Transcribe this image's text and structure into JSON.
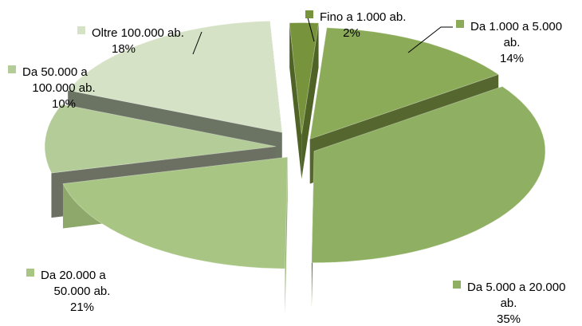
{
  "chart_data": {
    "type": "pie",
    "style": "3d-exploded",
    "categories": [
      "Fino a 1.000 ab.",
      "Da 1.000 a 5.000 ab.",
      "Da 5.000 a 20.000 ab.",
      "Da 20.000 a 50.000 ab.",
      "Da 50.000 a 100.000 ab.",
      "Oltre 100.000 ab."
    ],
    "values": [
      2,
      14,
      35,
      21,
      10,
      18
    ],
    "value_labels": [
      "2%",
      "14%",
      "35%",
      "21%",
      "10%",
      "18%"
    ],
    "label_lines": [
      [
        "Fino a 1.000 ab."
      ],
      [
        "Da 1.000 a 5.000",
        "ab."
      ],
      [
        "Da 5.000 a 20.000",
        "ab."
      ],
      [
        "Da 20.000 a",
        "50.000 ab."
      ],
      [
        "Da 50.000 a",
        "100.000 ab."
      ],
      [
        "Oltre 100.000 ab."
      ]
    ],
    "colors": [
      "#77933c",
      "#8bab58",
      "#8fb063",
      "#a8c584",
      "#b4cc98",
      "#d5e2c6"
    ],
    "side_colors": [
      "#4f6327",
      "#55672f",
      "#5c7535",
      "#8da86a",
      "#6b7063",
      "#6b7363"
    ],
    "legend": "data-labels",
    "unit": "%"
  }
}
